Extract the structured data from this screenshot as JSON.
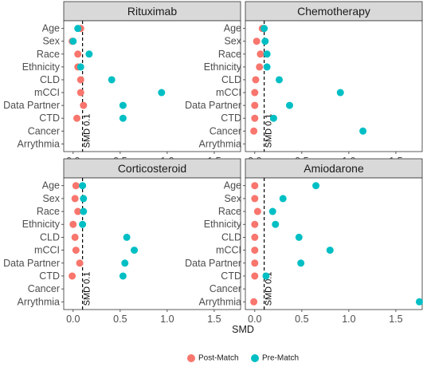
{
  "chart_data": {
    "type": "scatter",
    "xlabel": "SMD",
    "xlim": [
      -0.1,
      1.78
    ],
    "xticks": [
      0.0,
      0.5,
      1.0,
      1.5
    ],
    "xtick_labels": [
      "0.0",
      "0.5",
      "1.0",
      "1.5"
    ],
    "reference_line": {
      "x": 0.1,
      "label": "SMD 0.1"
    },
    "categories": [
      "Age",
      "Sex",
      "Race",
      "Ethnicity",
      "CLD",
      "mCCI",
      "Data Partner",
      "CTD",
      "Cancer",
      "Arrythmia"
    ],
    "legend": {
      "placement": "bottom",
      "items": [
        {
          "name": "Post-Match",
          "color": "#F8766D"
        },
        {
          "name": "Pre-Match",
          "color": "#00BFC4"
        }
      ]
    },
    "panels": [
      {
        "title": "Rituximab",
        "series": [
          {
            "name": "Post-Match",
            "values": {
              "Age": 0.08,
              "Sex": -0.01,
              "Race": 0.05,
              "Ethnicity": 0.05,
              "CLD": 0.08,
              "mCCI": 0.08,
              "Data Partner": 0.11,
              "CTD": 0.04
            }
          },
          {
            "name": "Pre-Match",
            "values": {
              "Age": 0.05,
              "Sex": 0.0,
              "Race": 0.17,
              "Ethnicity": 0.08,
              "CLD": 0.41,
              "mCCI": 0.94,
              "Data Partner": 0.53,
              "CTD": 0.53
            }
          }
        ]
      },
      {
        "title": "Chemotherapy",
        "series": [
          {
            "name": "Post-Match",
            "values": {
              "Age": 0.08,
              "Sex": 0.02,
              "Race": 0.06,
              "Ethnicity": 0.05,
              "CLD": 0.01,
              "mCCI": 0.0,
              "Data Partner": 0.0,
              "CTD": 0.0,
              "Cancer": -0.01
            }
          },
          {
            "name": "Pre-Match",
            "values": {
              "Age": 0.1,
              "Sex": 0.11,
              "Race": 0.13,
              "Ethnicity": 0.13,
              "CLD": 0.26,
              "mCCI": 0.91,
              "Data Partner": 0.37,
              "CTD": 0.2,
              "Cancer": 1.15
            }
          }
        ]
      },
      {
        "title": "Corticosteroid",
        "series": [
          {
            "name": "Post-Match",
            "values": {
              "Age": 0.03,
              "Sex": 0.02,
              "Race": 0.05,
              "Ethnicity": 0.0,
              "CLD": 0.02,
              "mCCI": 0.03,
              "Data Partner": 0.07,
              "CTD": -0.01
            }
          },
          {
            "name": "Pre-Match",
            "values": {
              "Age": 0.1,
              "Sex": 0.11,
              "Race": 0.11,
              "Ethnicity": 0.1,
              "CLD": 0.57,
              "mCCI": 0.65,
              "Data Partner": 0.55,
              "CTD": 0.53
            }
          }
        ]
      },
      {
        "title": "Amiodarone",
        "series": [
          {
            "name": "Post-Match",
            "values": {
              "Age": 0.0,
              "Sex": 0.0,
              "Race": 0.03,
              "Ethnicity": 0.0,
              "CLD": 0.0,
              "mCCI": 0.0,
              "Data Partner": 0.0,
              "CTD": 0.0,
              "Arrythmia": -0.01
            }
          },
          {
            "name": "Pre-Match",
            "values": {
              "Age": 0.65,
              "Sex": 0.3,
              "Race": 0.19,
              "Ethnicity": 0.22,
              "CLD": 0.47,
              "mCCI": 0.8,
              "Data Partner": 0.49,
              "CTD": 0.12,
              "Arrythmia": 1.75
            }
          }
        ]
      }
    ]
  }
}
